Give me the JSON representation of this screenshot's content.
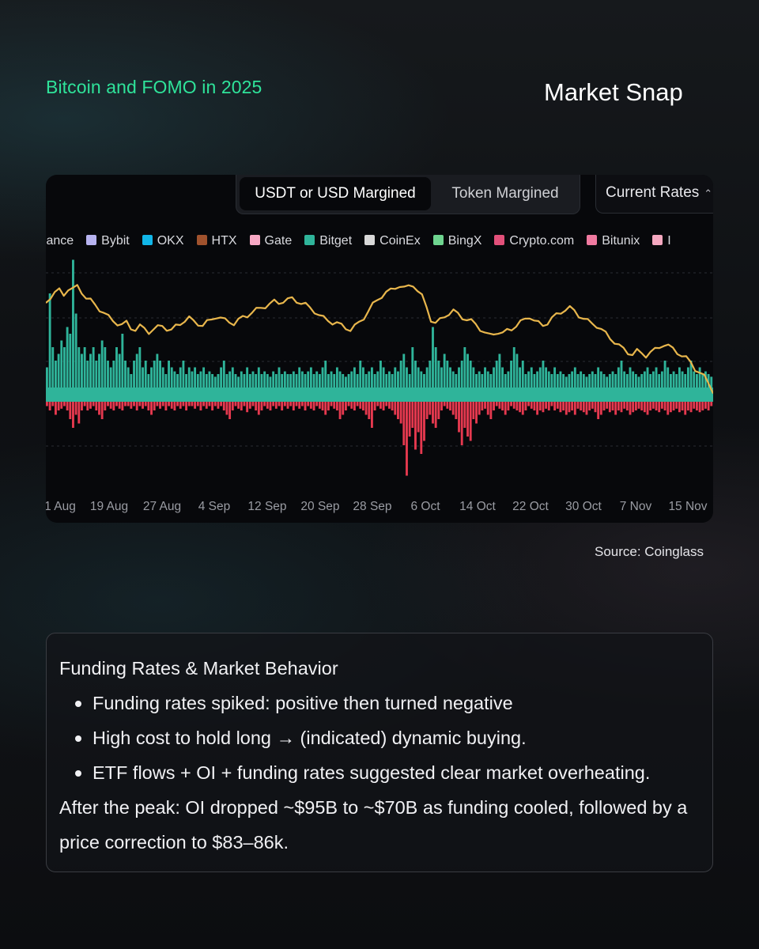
{
  "header": {
    "brand_tag": "Bitcoin and FOMO in 2025",
    "title": "Market Snap"
  },
  "chart_toolbar": {
    "margin_toggle": [
      "USDT or USD Margined",
      "Token Margined"
    ],
    "selected_toggle": "USDT or USD Margined",
    "rate_select_value": "Current Rates",
    "rate_select_icon": "up-down-chevron-icon"
  },
  "legend": [
    {
      "name": "inance",
      "color": "#f0b90b"
    },
    {
      "name": "Bybit",
      "color": "#b7b3f0"
    },
    {
      "name": "OKX",
      "color": "#11b6e8"
    },
    {
      "name": "HTX",
      "color": "#a0522d"
    },
    {
      "name": "Gate",
      "color": "#f7a8c4"
    },
    {
      "name": "Bitget",
      "color": "#2fb49a"
    },
    {
      "name": "CoinEx",
      "color": "#d8d8d8"
    },
    {
      "name": "BingX",
      "color": "#6ed48f"
    },
    {
      "name": "Crypto.com",
      "color": "#e2507a"
    },
    {
      "name": "Bitunix",
      "color": "#f07aa0"
    },
    {
      "name": "I",
      "color": "#f5a8c0"
    }
  ],
  "chart_data": {
    "type": "bar",
    "x_ticks": [
      "1 Aug",
      "19 Aug",
      "27 Aug",
      "4 Sep",
      "12 Sep",
      "20 Sep",
      "28 Sep",
      "6 Oct",
      "14 Oct",
      "22 Oct",
      "30 Oct",
      "7 Nov",
      "15 Nov"
    ],
    "baseline_band_color": "#2fb49a",
    "positive_color": "#2fb49a",
    "negative_color": "#e6394f",
    "line_color": "#e8b64c",
    "grid": true,
    "funding_bars_relative": [
      0.15,
      0.7,
      0.3,
      0.2,
      0.25,
      0.35,
      0.3,
      0.45,
      0.4,
      0.95,
      0.55,
      0.3,
      0.25,
      0.3,
      0.2,
      0.25,
      0.3,
      0.2,
      0.25,
      0.35,
      0.3,
      0.2,
      0.15,
      0.2,
      0.3,
      0.25,
      0.4,
      0.2,
      0.15,
      0.1,
      0.2,
      0.25,
      0.3,
      0.15,
      0.2,
      0.1,
      0.15,
      0.2,
      0.25,
      0.2,
      0.15,
      0.1,
      0.2,
      0.15,
      0.12,
      0.1,
      0.15,
      0.2,
      0.1,
      0.15,
      0.12,
      0.15,
      0.1,
      0.12,
      0.15,
      0.1,
      0.12,
      0.1,
      0.08,
      0.1,
      0.15,
      0.2,
      0.1,
      0.12,
      0.15,
      0.1,
      0.08,
      0.12,
      0.1,
      0.15,
      0.1,
      0.12,
      0.1,
      0.15,
      0.1,
      0.12,
      0.1,
      0.08,
      0.12,
      0.1,
      0.15,
      0.1,
      0.12,
      0.1,
      0.1,
      0.12,
      0.1,
      0.15,
      0.12,
      0.1,
      0.12,
      0.15,
      0.1,
      0.12,
      0.1,
      0.15,
      0.2,
      0.1,
      0.12,
      0.1,
      0.15,
      0.12,
      0.1,
      0.08,
      0.1,
      0.12,
      0.15,
      0.1,
      0.2,
      0.15,
      0.1,
      0.12,
      0.15,
      0.1,
      0.12,
      0.2,
      0.15,
      0.1,
      0.12,
      0.1,
      0.15,
      0.12,
      0.2,
      0.25,
      0.15,
      0.1,
      0.3,
      0.2,
      0.15,
      0.12,
      0.1,
      0.15,
      0.2,
      0.45,
      0.3,
      0.2,
      0.15,
      0.25,
      0.2,
      0.15,
      0.12,
      0.1,
      0.15,
      0.2,
      0.3,
      0.25,
      0.2,
      0.15,
      0.1,
      0.12,
      0.1,
      0.15,
      0.12,
      0.1,
      0.15,
      0.2,
      0.25,
      0.15,
      0.1,
      0.12,
      0.2,
      0.3,
      0.25,
      0.15,
      0.2,
      0.1,
      0.12,
      0.15,
      0.1,
      0.12,
      0.15,
      0.2,
      0.15,
      0.12,
      0.1,
      0.15,
      0.1,
      0.12,
      0.1,
      0.08,
      0.1,
      0.12,
      0.15,
      0.1,
      0.12,
      0.1,
      0.08,
      0.1,
      0.12,
      0.1,
      0.15,
      0.12,
      0.1,
      0.08,
      0.1,
      0.12,
      0.1,
      0.15,
      0.2,
      0.12,
      0.1,
      0.15,
      0.12,
      0.1,
      0.08,
      0.1,
      0.12,
      0.15,
      0.1,
      0.12,
      0.15,
      0.1,
      0.12,
      0.2,
      0.15,
      0.1,
      0.12,
      0.1,
      0.15,
      0.12,
      0.1,
      0.15,
      0.2,
      0.12,
      0.1,
      0.15,
      0.1,
      0.12,
      0.1,
      0.08
    ],
    "funding_bars_negative_relative": [
      0.05,
      0.1,
      0.05,
      0.15,
      0.1,
      0.08,
      0.05,
      0.1,
      0.2,
      0.3,
      0.15,
      0.25,
      0.1,
      0.05,
      0.1,
      0.08,
      0.05,
      0.1,
      0.15,
      0.2,
      0.1,
      0.05,
      0.08,
      0.1,
      0.05,
      0.08,
      0.1,
      0.05,
      0.05,
      0.08,
      0.05,
      0.1,
      0.05,
      0.08,
      0.05,
      0.1,
      0.15,
      0.1,
      0.05,
      0.08,
      0.05,
      0.1,
      0.05,
      0.08,
      0.1,
      0.05,
      0.08,
      0.05,
      0.1,
      0.05,
      0.05,
      0.08,
      0.05,
      0.1,
      0.05,
      0.08,
      0.05,
      0.1,
      0.05,
      0.08,
      0.05,
      0.1,
      0.15,
      0.2,
      0.1,
      0.05,
      0.08,
      0.1,
      0.05,
      0.12,
      0.08,
      0.05,
      0.1,
      0.15,
      0.1,
      0.05,
      0.08,
      0.1,
      0.05,
      0.08,
      0.05,
      0.1,
      0.05,
      0.08,
      0.05,
      0.1,
      0.05,
      0.08,
      0.05,
      0.1,
      0.05,
      0.08,
      0.1,
      0.05,
      0.08,
      0.1,
      0.15,
      0.1,
      0.05,
      0.08,
      0.1,
      0.2,
      0.15,
      0.1,
      0.05,
      0.08,
      0.1,
      0.05,
      0.08,
      0.1,
      0.15,
      0.2,
      0.3,
      0.1,
      0.05,
      0.08,
      0.1,
      0.05,
      0.08,
      0.1,
      0.15,
      0.2,
      0.25,
      0.5,
      0.85,
      0.4,
      0.3,
      0.55,
      0.35,
      0.6,
      0.45,
      0.2,
      0.15,
      0.25,
      0.3,
      0.2,
      0.1,
      0.05,
      0.08,
      0.1,
      0.15,
      0.2,
      0.35,
      0.5,
      0.3,
      0.4,
      0.45,
      0.2,
      0.25,
      0.15,
      0.1,
      0.08,
      0.15,
      0.2,
      0.1,
      0.05,
      0.08,
      0.1,
      0.15,
      0.1,
      0.05,
      0.08,
      0.1,
      0.12,
      0.15,
      0.1,
      0.05,
      0.08,
      0.1,
      0.15,
      0.1,
      0.12,
      0.08,
      0.1,
      0.05,
      0.1,
      0.08,
      0.12,
      0.1,
      0.15,
      0.12,
      0.1,
      0.15,
      0.08,
      0.1,
      0.12,
      0.15,
      0.1,
      0.08,
      0.12,
      0.2,
      0.15,
      0.1,
      0.08,
      0.12,
      0.1,
      0.15,
      0.1,
      0.12,
      0.08,
      0.1,
      0.15,
      0.12,
      0.1,
      0.08,
      0.1,
      0.12,
      0.15,
      0.1,
      0.08,
      0.1,
      0.12,
      0.08,
      0.1,
      0.15,
      0.12,
      0.1,
      0.08,
      0.12,
      0.1,
      0.15,
      0.1,
      0.12,
      0.08,
      0.1,
      0.12,
      0.1,
      0.08,
      0.1,
      0.05
    ],
    "price_line_relative": [
      0.6,
      0.66,
      0.7,
      0.72,
      0.68,
      0.74,
      0.73,
      0.76,
      0.71,
      0.65,
      0.62,
      0.58,
      0.54,
      0.5,
      0.46,
      0.43,
      0.4,
      0.38,
      0.41,
      0.36,
      0.34,
      0.37,
      0.35,
      0.32,
      0.34,
      0.36,
      0.38,
      0.35,
      0.33,
      0.37,
      0.4,
      0.43,
      0.45,
      0.42,
      0.4,
      0.38,
      0.41,
      0.44,
      0.47,
      0.45,
      0.43,
      0.42,
      0.4,
      0.43,
      0.46,
      0.48,
      0.51,
      0.53,
      0.55,
      0.57,
      0.59,
      0.61,
      0.6,
      0.62,
      0.63,
      0.64,
      0.62,
      0.6,
      0.58,
      0.55,
      0.52,
      0.48,
      0.45,
      0.43,
      0.41,
      0.4,
      0.38,
      0.36,
      0.34,
      0.37,
      0.41,
      0.46,
      0.52,
      0.58,
      0.63,
      0.67,
      0.7,
      0.72,
      0.75,
      0.77,
      0.74,
      0.76,
      0.78,
      0.72,
      0.66,
      0.56,
      0.44,
      0.4,
      0.43,
      0.47,
      0.5,
      0.52,
      0.49,
      0.46,
      0.44,
      0.42,
      0.39,
      0.35,
      0.31,
      0.28,
      0.3,
      0.32,
      0.3,
      0.33,
      0.35,
      0.38,
      0.41,
      0.44,
      0.47,
      0.43,
      0.4,
      0.38,
      0.41,
      0.45,
      0.48,
      0.51,
      0.54,
      0.55,
      0.52,
      0.48,
      0.45,
      0.42,
      0.4,
      0.38,
      0.34,
      0.3,
      0.26,
      0.22,
      0.18,
      0.15,
      0.12,
      0.1,
      0.13,
      0.11,
      0.09,
      0.12,
      0.14,
      0.17,
      0.2,
      0.18,
      0.15,
      0.12,
      0.09,
      0.06,
      0.02,
      -0.04,
      -0.08,
      -0.12,
      -0.18,
      -0.26
    ]
  },
  "source": "Source: Coinglass",
  "info": {
    "heading": "Funding Rates & Market Behavior",
    "bullets": [
      "Funding rates spiked: positive then turned negative",
      "High cost to hold long → (indicated) dynamic buying.",
      "ETF flows + OI + funding rates suggested clear market overheating."
    ],
    "paragraph": "After the peak: OI dropped ~$95B to ~$70B as funding cooled, followed by a price correction to $83–86k."
  }
}
